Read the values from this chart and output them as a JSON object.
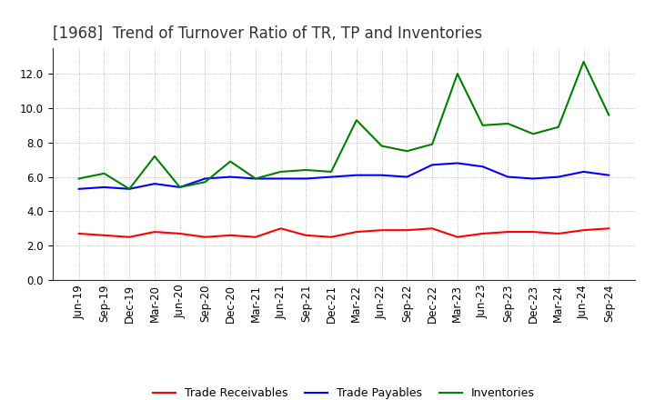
{
  "title": "[1968]  Trend of Turnover Ratio of TR, TP and Inventories",
  "labels": [
    "Jun-19",
    "Sep-19",
    "Dec-19",
    "Mar-20",
    "Jun-20",
    "Sep-20",
    "Dec-20",
    "Mar-21",
    "Jun-21",
    "Sep-21",
    "Dec-21",
    "Mar-22",
    "Jun-22",
    "Sep-22",
    "Dec-22",
    "Mar-23",
    "Jun-23",
    "Sep-23",
    "Dec-23",
    "Mar-24",
    "Jun-24",
    "Sep-24"
  ],
  "trade_receivables": [
    2.7,
    2.6,
    2.5,
    2.8,
    2.7,
    2.5,
    2.6,
    2.5,
    3.0,
    2.6,
    2.5,
    2.8,
    2.9,
    2.9,
    3.0,
    2.5,
    2.7,
    2.8,
    2.8,
    2.7,
    2.9,
    3.0
  ],
  "trade_payables": [
    5.3,
    5.4,
    5.3,
    5.6,
    5.4,
    5.9,
    6.0,
    5.9,
    5.9,
    5.9,
    6.0,
    6.1,
    6.1,
    6.0,
    6.7,
    6.8,
    6.6,
    6.0,
    5.9,
    6.0,
    6.3,
    6.1
  ],
  "inventories": [
    5.9,
    6.2,
    5.3,
    7.2,
    5.4,
    5.7,
    6.9,
    5.9,
    6.3,
    6.4,
    6.3,
    9.3,
    7.8,
    7.5,
    7.9,
    12.0,
    9.0,
    9.1,
    8.5,
    8.9,
    12.7,
    9.6
  ],
  "ylim": [
    0,
    13.5
  ],
  "yticks": [
    0.0,
    2.0,
    4.0,
    6.0,
    8.0,
    10.0,
    12.0
  ],
  "line_colors": {
    "trade_receivables": "#ff0000",
    "trade_payables": "#0000ff",
    "inventories": "#008000"
  },
  "legend_labels": [
    "Trade Receivables",
    "Trade Payables",
    "Inventories"
  ],
  "background_color": "#ffffff",
  "grid_color": "#aaaaaa",
  "title_fontsize": 12,
  "tick_fontsize": 8.5,
  "legend_fontsize": 9
}
